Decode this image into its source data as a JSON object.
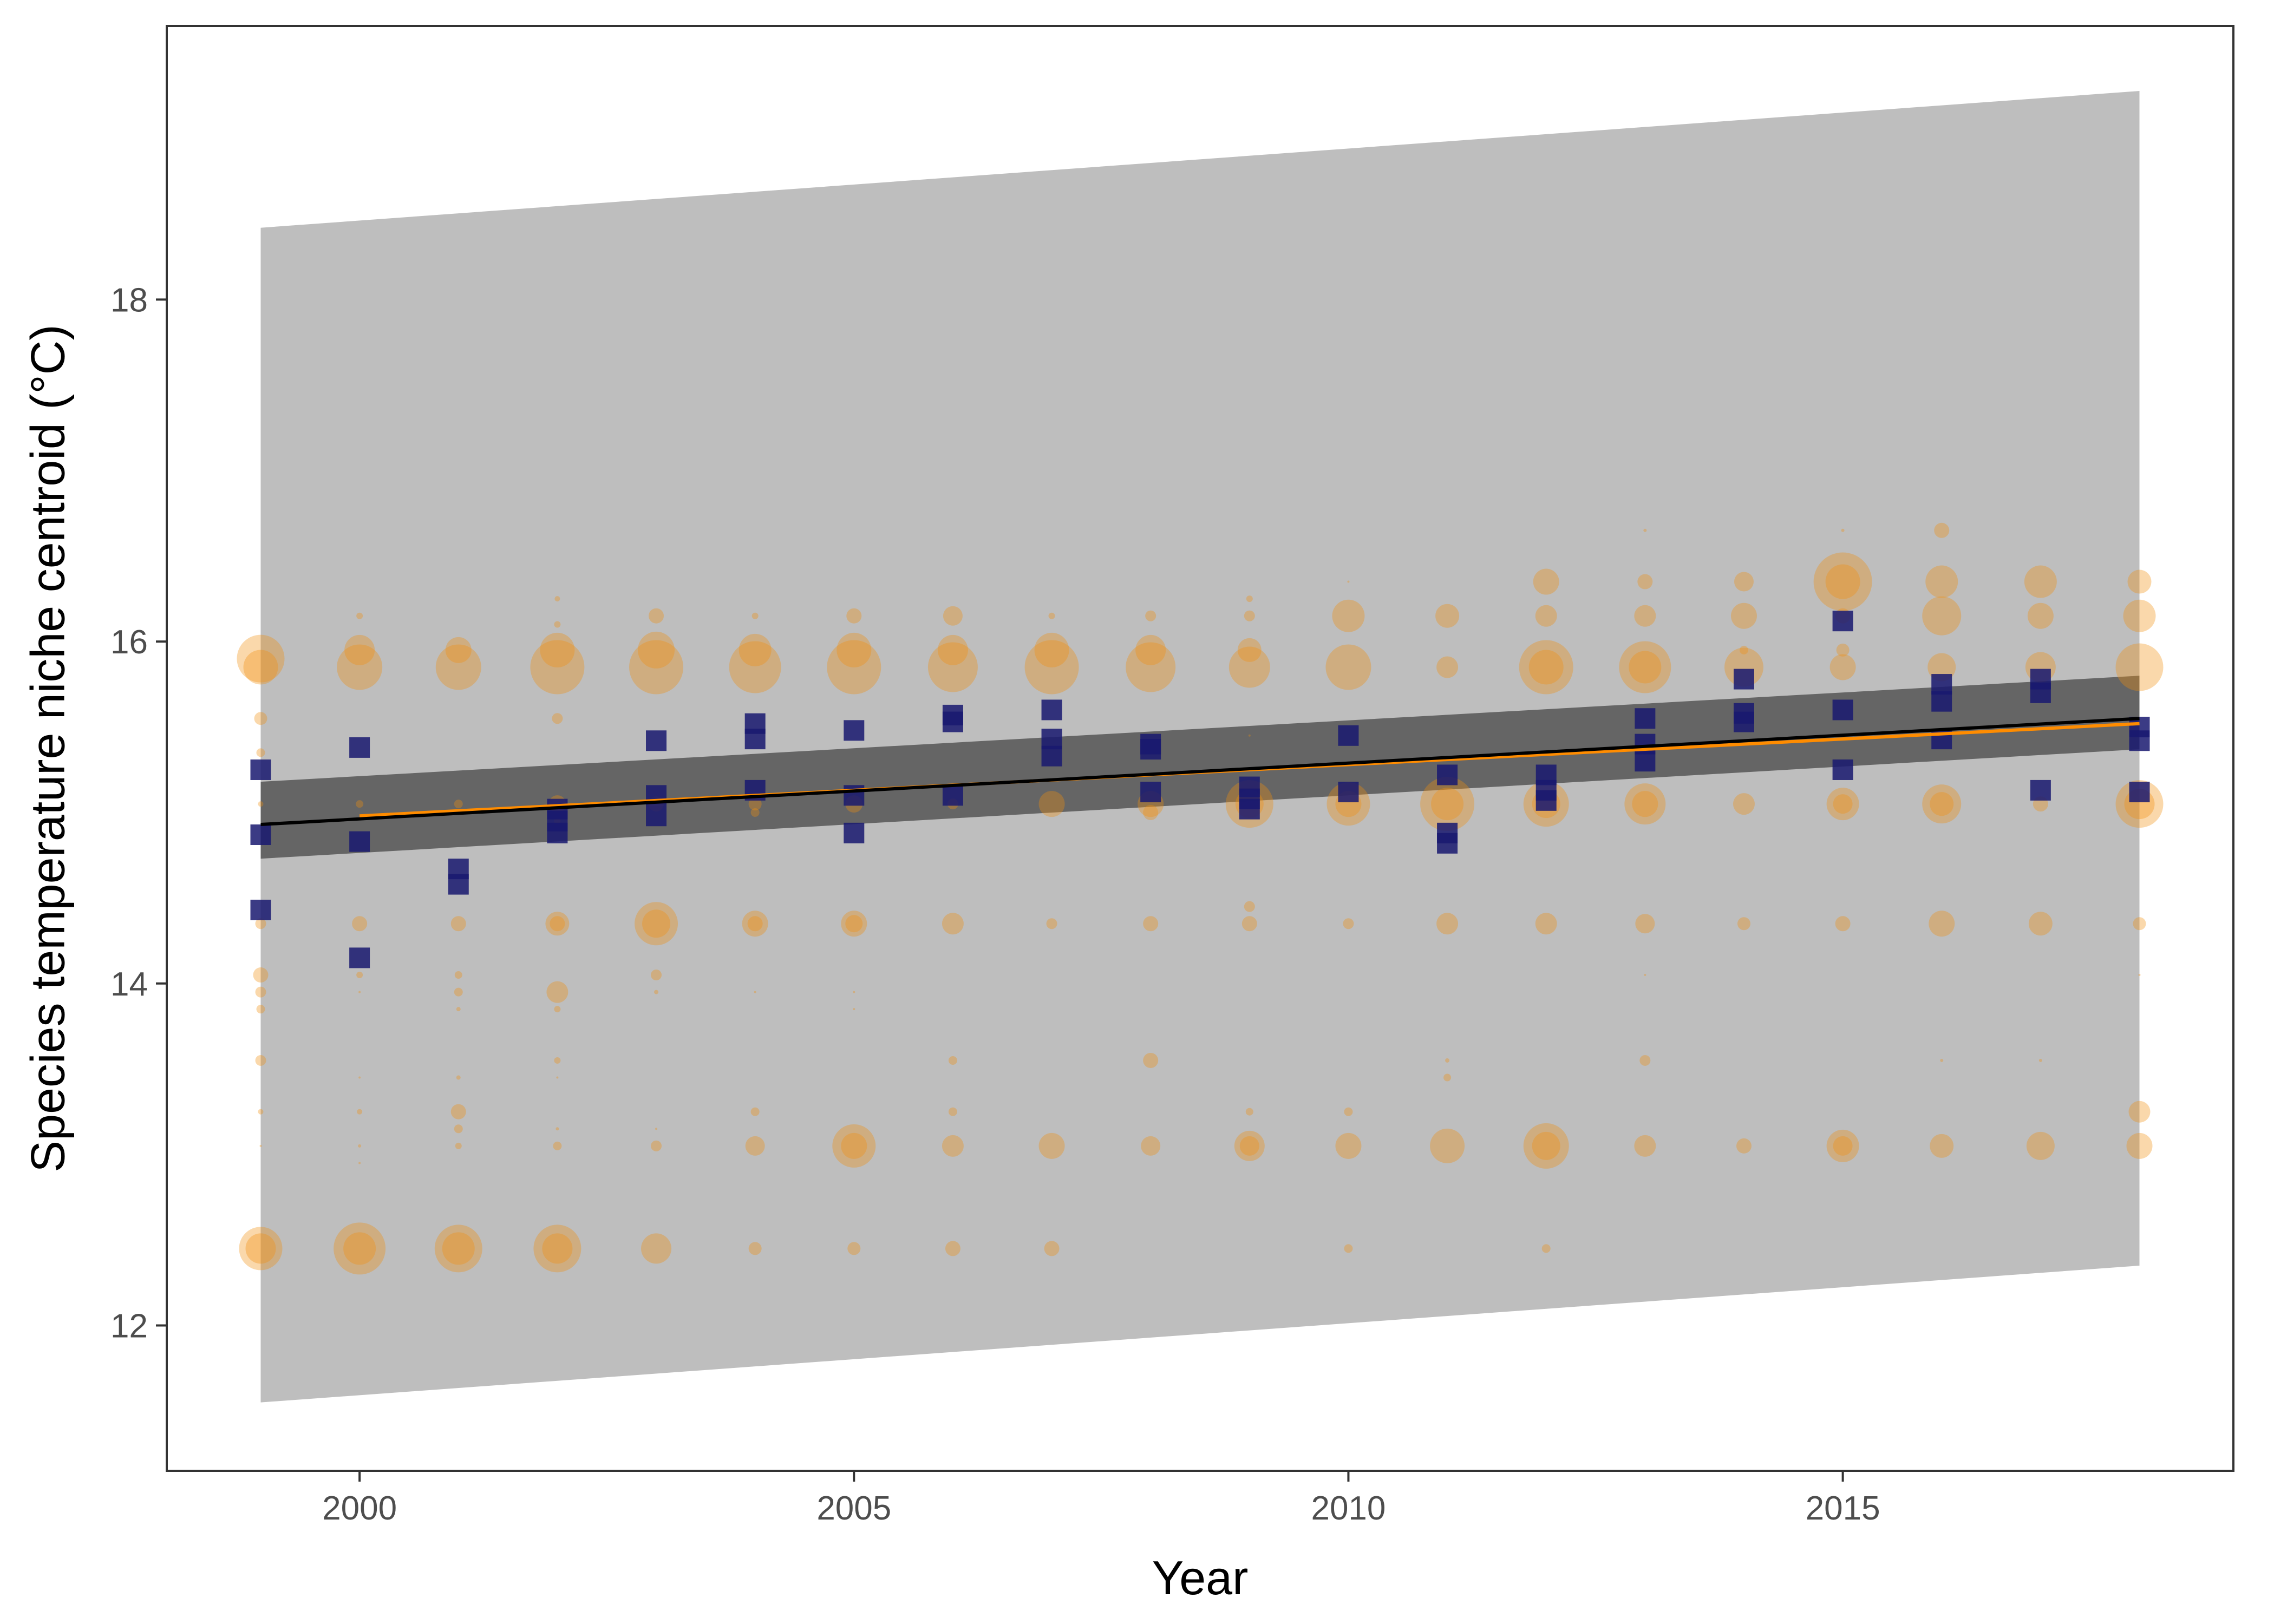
{
  "chart_data": {
    "type": "scatter",
    "title": "",
    "xlabel": "Year",
    "ylabel": "Species temperature niche centroid (°C)",
    "xlim": [
      1998.05,
      2018.95
    ],
    "ylim": [
      11.15,
      19.6
    ],
    "xticks": [
      2000,
      2005,
      2010,
      2015
    ],
    "yticks": [
      12,
      14,
      16,
      18
    ],
    "grid": false,
    "legend": "none",
    "colors": {
      "points": "#F28E0F",
      "means": "#191970",
      "trend": "#000000",
      "trend_alt": "#FF8C00",
      "prediction_band": "#BEBEBE",
      "confidence_band": "#595959",
      "panel_border": "#333333"
    },
    "prediction_interval": {
      "x": [
        1999,
        2018
      ],
      "lower": [
        11.55,
        12.35
      ],
      "upper": [
        18.42,
        19.22
      ]
    },
    "confidence_interval": {
      "x": [
        1999,
        2018
      ],
      "lower": [
        14.73,
        15.37
      ],
      "upper": [
        15.18,
        15.8
      ]
    },
    "trend_line": {
      "x": [
        1999,
        2018
      ],
      "y": [
        14.93,
        15.55
      ]
    },
    "trend_line_alt": {
      "x": [
        2000,
        2018
      ],
      "y": [
        14.98,
        15.52
      ]
    },
    "means": [
      {
        "x": 1999,
        "y": [
          15.25,
          14.87,
          14.43
        ]
      },
      {
        "x": 2000,
        "y": [
          15.38,
          14.83,
          14.15
        ]
      },
      {
        "x": 2001,
        "y": [
          14.67,
          14.58
        ]
      },
      {
        "x": 2002,
        "y": [
          15.02,
          14.95,
          14.88
        ]
      },
      {
        "x": 2003,
        "y": [
          15.42,
          15.1,
          14.98
        ]
      },
      {
        "x": 2004,
        "y": [
          15.52,
          15.43,
          15.13
        ]
      },
      {
        "x": 2005,
        "y": [
          15.48,
          15.1,
          14.88
        ]
      },
      {
        "x": 2006,
        "y": [
          15.57,
          15.53,
          15.1
        ]
      },
      {
        "x": 2007,
        "y": [
          15.6,
          15.43,
          15.33
        ]
      },
      {
        "x": 2008,
        "y": [
          15.4,
          15.37,
          15.12
        ]
      },
      {
        "x": 2009,
        "y": [
          15.15,
          15.08,
          15.02
        ]
      },
      {
        "x": 2010,
        "y": [
          15.45,
          15.12
        ]
      },
      {
        "x": 2011,
        "y": [
          15.22,
          14.88,
          14.82
        ]
      },
      {
        "x": 2012,
        "y": [
          15.22,
          15.13,
          15.07
        ]
      },
      {
        "x": 2013,
        "y": [
          15.55,
          15.4,
          15.3
        ]
      },
      {
        "x": 2014,
        "y": [
          15.78,
          15.58,
          15.53
        ]
      },
      {
        "x": 2015,
        "y": [
          16.12,
          15.6,
          15.25
        ]
      },
      {
        "x": 2016,
        "y": [
          15.75,
          15.65,
          15.43
        ]
      },
      {
        "x": 2017,
        "y": [
          15.78,
          15.7,
          15.13
        ]
      },
      {
        "x": 2018,
        "y": [
          15.5,
          15.42,
          15.12
        ]
      }
    ],
    "points": [
      {
        "x": 1999,
        "y": [
          [
            15.9,
            44
          ],
          [
            15.85,
            32
          ],
          [
            15.55,
            12
          ],
          [
            15.35,
            8
          ],
          [
            15.05,
            5
          ],
          [
            14.35,
            10
          ],
          [
            14.05,
            14
          ],
          [
            13.95,
            10
          ],
          [
            13.85,
            8
          ],
          [
            13.55,
            10
          ],
          [
            13.25,
            5
          ],
          [
            13.05,
            2
          ],
          [
            12.45,
            40
          ],
          [
            12.45,
            28
          ]
        ]
      },
      {
        "x": 2000,
        "y": [
          [
            15.85,
            42
          ],
          [
            15.95,
            28
          ],
          [
            16.15,
            6
          ],
          [
            15.05,
            7
          ],
          [
            14.35,
            14
          ],
          [
            14.05,
            6
          ],
          [
            13.95,
            2
          ],
          [
            13.45,
            2
          ],
          [
            13.25,
            5
          ],
          [
            13.05,
            3
          ],
          [
            12.95,
            2
          ],
          [
            12.45,
            48
          ],
          [
            12.45,
            30
          ]
        ]
      },
      {
        "x": 2001,
        "y": [
          [
            15.85,
            42
          ],
          [
            15.95,
            24
          ],
          [
            15.05,
            8
          ],
          [
            14.35,
            14
          ],
          [
            14.05,
            7
          ],
          [
            13.95,
            8
          ],
          [
            13.85,
            4
          ],
          [
            13.45,
            4
          ],
          [
            13.25,
            14
          ],
          [
            13.15,
            8
          ],
          [
            13.05,
            6
          ],
          [
            12.45,
            44
          ],
          [
            12.45,
            30
          ]
        ]
      },
      {
        "x": 2002,
        "y": [
          [
            15.85,
            50
          ],
          [
            15.95,
            32
          ],
          [
            16.25,
            5
          ],
          [
            16.1,
            6
          ],
          [
            15.55,
            10
          ],
          [
            15.05,
            16
          ],
          [
            14.95,
            6
          ],
          [
            14.35,
            22
          ],
          [
            14.35,
            14
          ],
          [
            13.95,
            20
          ],
          [
            13.85,
            6
          ],
          [
            13.55,
            6
          ],
          [
            13.45,
            2
          ],
          [
            13.15,
            3
          ],
          [
            13.05,
            8
          ],
          [
            12.45,
            44
          ],
          [
            12.45,
            28
          ]
        ]
      },
      {
        "x": 2003,
        "y": [
          [
            15.85,
            50
          ],
          [
            15.95,
            34
          ],
          [
            16.15,
            14
          ],
          [
            15.05,
            14
          ],
          [
            14.35,
            40
          ],
          [
            14.35,
            26
          ],
          [
            14.05,
            10
          ],
          [
            13.95,
            4
          ],
          [
            13.15,
            2
          ],
          [
            13.05,
            10
          ],
          [
            12.45,
            28
          ]
        ]
      },
      {
        "x": 2004,
        "y": [
          [
            15.85,
            48
          ],
          [
            15.95,
            30
          ],
          [
            16.15,
            6
          ],
          [
            15.05,
            12
          ],
          [
            15.0,
            8
          ],
          [
            14.35,
            24
          ],
          [
            14.35,
            14
          ],
          [
            13.95,
            2
          ],
          [
            13.25,
            8
          ],
          [
            13.05,
            18
          ],
          [
            12.45,
            12
          ]
        ]
      },
      {
        "x": 2005,
        "y": [
          [
            15.85,
            50
          ],
          [
            15.95,
            32
          ],
          [
            16.15,
            14
          ],
          [
            15.05,
            16
          ],
          [
            14.35,
            24
          ],
          [
            14.35,
            16
          ],
          [
            13.95,
            2
          ],
          [
            13.85,
            2
          ],
          [
            13.05,
            40
          ],
          [
            13.05,
            24
          ],
          [
            12.45,
            12
          ]
        ]
      },
      {
        "x": 2006,
        "y": [
          [
            15.85,
            46
          ],
          [
            15.95,
            28
          ],
          [
            16.15,
            18
          ],
          [
            15.05,
            10
          ],
          [
            14.35,
            20
          ],
          [
            13.55,
            8
          ],
          [
            13.25,
            8
          ],
          [
            13.05,
            20
          ],
          [
            12.45,
            14
          ]
        ]
      },
      {
        "x": 2007,
        "y": [
          [
            15.85,
            50
          ],
          [
            15.95,
            32
          ],
          [
            16.15,
            6
          ],
          [
            15.05,
            24
          ],
          [
            14.35,
            10
          ],
          [
            13.05,
            24
          ],
          [
            12.45,
            14
          ]
        ]
      },
      {
        "x": 2008,
        "y": [
          [
            15.85,
            46
          ],
          [
            15.95,
            28
          ],
          [
            16.15,
            10
          ],
          [
            15.05,
            24
          ],
          [
            15.0,
            14
          ],
          [
            14.35,
            14
          ],
          [
            13.55,
            14
          ],
          [
            13.05,
            18
          ]
        ]
      },
      {
        "x": 2009,
        "y": [
          [
            15.85,
            38
          ],
          [
            15.95,
            22
          ],
          [
            16.15,
            10
          ],
          [
            16.25,
            6
          ],
          [
            15.45,
            2
          ],
          [
            15.05,
            44
          ],
          [
            15.05,
            26
          ],
          [
            14.35,
            14
          ],
          [
            14.45,
            10
          ],
          [
            13.25,
            7
          ],
          [
            13.05,
            28
          ],
          [
            13.05,
            18
          ]
        ]
      },
      {
        "x": 2010,
        "y": [
          [
            15.85,
            42
          ],
          [
            16.15,
            30
          ],
          [
            16.35,
            2
          ],
          [
            15.05,
            40
          ],
          [
            15.05,
            24
          ],
          [
            14.35,
            10
          ],
          [
            13.25,
            8
          ],
          [
            13.05,
            24
          ],
          [
            12.45,
            8
          ]
        ]
      },
      {
        "x": 2011,
        "y": [
          [
            16.15,
            22
          ],
          [
            15.85,
            20
          ],
          [
            15.05,
            50
          ],
          [
            15.05,
            30
          ],
          [
            14.35,
            20
          ],
          [
            13.55,
            4
          ],
          [
            13.45,
            7
          ],
          [
            13.05,
            32
          ]
        ]
      },
      {
        "x": 2012,
        "y": [
          [
            15.85,
            50
          ],
          [
            15.85,
            32
          ],
          [
            16.15,
            20
          ],
          [
            16.35,
            24
          ],
          [
            15.05,
            42
          ],
          [
            15.05,
            26
          ],
          [
            14.35,
            20
          ],
          [
            13.05,
            42
          ],
          [
            13.05,
            26
          ],
          [
            12.45,
            8
          ]
        ]
      },
      {
        "x": 2013,
        "y": [
          [
            15.85,
            48
          ],
          [
            15.85,
            30
          ],
          [
            16.15,
            20
          ],
          [
            16.35,
            14
          ],
          [
            16.65,
            3
          ],
          [
            15.05,
            38
          ],
          [
            15.05,
            24
          ],
          [
            14.35,
            18
          ],
          [
            14.05,
            2
          ],
          [
            13.55,
            10
          ],
          [
            13.05,
            20
          ]
        ]
      },
      {
        "x": 2014,
        "y": [
          [
            15.85,
            36
          ],
          [
            16.15,
            24
          ],
          [
            16.35,
            18
          ],
          [
            15.95,
            8
          ],
          [
            15.05,
            20
          ],
          [
            14.35,
            12
          ],
          [
            13.05,
            14
          ]
        ]
      },
      {
        "x": 2015,
        "y": [
          [
            16.35,
            54
          ],
          [
            16.35,
            32
          ],
          [
            16.15,
            14
          ],
          [
            15.85,
            24
          ],
          [
            15.95,
            12
          ],
          [
            15.05,
            30
          ],
          [
            15.05,
            18
          ],
          [
            14.35,
            14
          ],
          [
            16.65,
            3
          ],
          [
            13.05,
            30
          ],
          [
            13.05,
            18
          ]
        ]
      },
      {
        "x": 2016,
        "y": [
          [
            16.35,
            30
          ],
          [
            16.15,
            36
          ],
          [
            15.85,
            26
          ],
          [
            16.65,
            14
          ],
          [
            15.05,
            36
          ],
          [
            15.05,
            22
          ],
          [
            14.35,
            24
          ],
          [
            13.55,
            3
          ],
          [
            13.05,
            22
          ]
        ]
      },
      {
        "x": 2017,
        "y": [
          [
            16.35,
            30
          ],
          [
            16.15,
            24
          ],
          [
            15.85,
            28
          ],
          [
            15.05,
            14
          ],
          [
            14.35,
            22
          ],
          [
            13.55,
            3
          ],
          [
            13.05,
            26
          ]
        ]
      },
      {
        "x": 2018,
        "y": [
          [
            16.35,
            22
          ],
          [
            16.15,
            30
          ],
          [
            15.85,
            44
          ],
          [
            15.05,
            44
          ],
          [
            15.05,
            28
          ],
          [
            14.35,
            12
          ],
          [
            14.05,
            2
          ],
          [
            13.25,
            20
          ],
          [
            13.05,
            24
          ]
        ]
      }
    ]
  }
}
